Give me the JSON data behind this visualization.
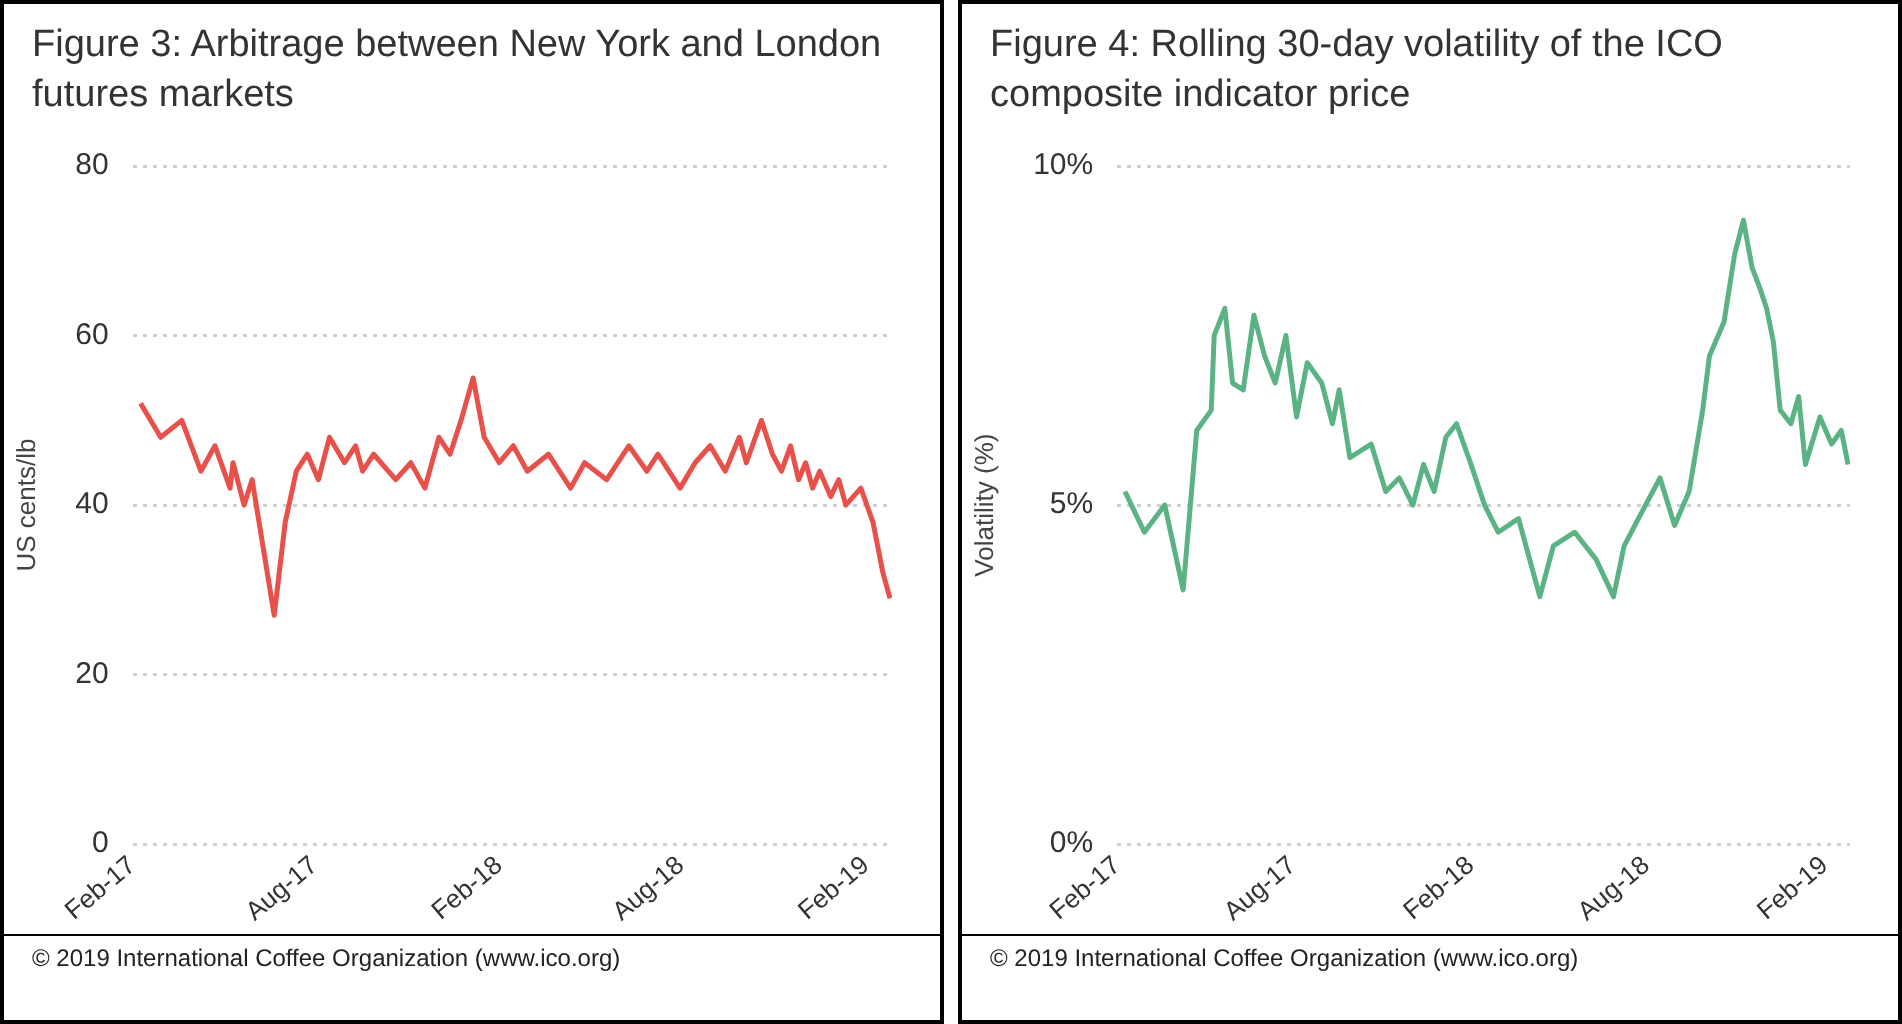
{
  "chart_data": [
    {
      "type": "line",
      "title": "Figure 3: Arbitrage between New York and London futures markets",
      "ylabel": "US cents/lb",
      "annotations": [
        "© 2019 International Coffee Organization (www.ico.org)"
      ],
      "x": [
        "2017-02-09",
        "2017-03-01",
        "2017-03-22",
        "2017-04-10",
        "2017-04-24",
        "2017-05-09",
        "2017-05-12",
        "2017-05-23",
        "2017-05-31",
        "2017-06-11",
        "2017-06-22",
        "2017-07-03",
        "2017-07-14",
        "2017-07-25",
        "2017-08-05",
        "2017-08-16",
        "2017-08-31",
        "2017-09-11",
        "2017-09-18",
        "2017-09-29",
        "2017-10-21",
        "2017-11-05",
        "2017-11-19",
        "2017-12-03",
        "2017-12-14",
        "2017-12-25",
        "2018-01-06",
        "2018-01-17",
        "2018-02-01",
        "2018-02-15",
        "2018-03-01",
        "2018-03-22",
        "2018-04-13",
        "2018-04-27",
        "2018-05-19",
        "2018-06-10",
        "2018-06-28",
        "2018-07-09",
        "2018-07-31",
        "2018-08-15",
        "2018-08-30",
        "2018-09-14",
        "2018-09-28",
        "2018-10-05",
        "2018-10-20",
        "2018-10-31",
        "2018-11-09",
        "2018-11-18",
        "2018-11-26",
        "2018-12-03",
        "2018-12-10",
        "2018-12-17",
        "2018-12-28",
        "2019-01-05",
        "2019-01-12",
        "2019-01-27",
        "2019-02-08",
        "2019-02-18",
        "2019-02-25"
      ],
      "series": [
        {
          "color": "#e8504a",
          "values": [
            52,
            48,
            50,
            44,
            47,
            42,
            45,
            40,
            43,
            35,
            27,
            38,
            44,
            46,
            43,
            48,
            45,
            47,
            44,
            46,
            43,
            45,
            42,
            48,
            46,
            50,
            55,
            48,
            45,
            47,
            44,
            46,
            42,
            45,
            43,
            47,
            44,
            46,
            42,
            45,
            47,
            44,
            48,
            45,
            50,
            46,
            44,
            47,
            43,
            45,
            42,
            44,
            41,
            43,
            40,
            42,
            38,
            32,
            29
          ]
        }
      ],
      "xlim": [
        "2017-02-01",
        "2019-02-27"
      ],
      "xticks": [
        {
          "value": "2017-02-01",
          "label": "Feb-17"
        },
        {
          "value": "2017-08-01",
          "label": "Aug-17"
        },
        {
          "value": "2018-02-01",
          "label": "Feb-18"
        },
        {
          "value": "2018-08-01",
          "label": "Aug-18"
        },
        {
          "value": "2019-02-01",
          "label": "Feb-19"
        }
      ],
      "ylim": [
        0,
        80
      ],
      "yticks": [
        0,
        20,
        40,
        60,
        80
      ],
      "grid": "y",
      "legend": false,
      "marker": "none",
      "line_style": "solid"
    },
    {
      "type": "line",
      "title": "Figure 4: Rolling 30-day volatility of the ICO composite indicator price",
      "ylabel": "Volatility (%)",
      "annotations": [
        "© 2019 International Coffee Organization (www.ico.org)"
      ],
      "x": [
        "2017-02-09",
        "2017-03-01",
        "2017-03-22",
        "2017-04-10",
        "2017-04-24",
        "2017-05-09",
        "2017-05-12",
        "2017-05-23",
        "2017-05-31",
        "2017-06-11",
        "2017-06-22",
        "2017-07-03",
        "2017-07-14",
        "2017-07-25",
        "2017-08-05",
        "2017-08-16",
        "2017-08-31",
        "2017-09-11",
        "2017-09-18",
        "2017-09-29",
        "2017-10-21",
        "2017-11-05",
        "2017-11-19",
        "2017-12-03",
        "2017-12-14",
        "2017-12-25",
        "2018-01-06",
        "2018-01-17",
        "2018-02-01",
        "2018-02-15",
        "2018-03-01",
        "2018-03-22",
        "2018-04-13",
        "2018-04-27",
        "2018-05-19",
        "2018-06-10",
        "2018-06-28",
        "2018-07-09",
        "2018-07-31",
        "2018-08-15",
        "2018-08-30",
        "2018-09-14",
        "2018-09-28",
        "2018-10-05",
        "2018-10-20",
        "2018-10-31",
        "2018-11-09",
        "2018-11-18",
        "2018-11-26",
        "2018-12-03",
        "2018-12-10",
        "2018-12-17",
        "2018-12-28",
        "2019-01-05",
        "2019-01-12",
        "2019-01-27",
        "2019-02-08",
        "2019-02-18",
        "2019-02-25"
      ],
      "series": [
        {
          "color": "#5bb384",
          "values": [
            5.2,
            4.6,
            5.0,
            3.75,
            6.1,
            6.4,
            7.5,
            7.9,
            6.8,
            6.7,
            7.8,
            7.2,
            6.8,
            7.5,
            6.3,
            7.1,
            6.8,
            6.2,
            6.7,
            5.7,
            5.9,
            5.2,
            5.4,
            5.0,
            5.6,
            5.2,
            6.0,
            6.2,
            5.6,
            5.0,
            4.6,
            4.8,
            3.65,
            4.4,
            4.6,
            4.2,
            3.65,
            4.4,
            5.0,
            5.4,
            4.7,
            5.2,
            6.4,
            7.2,
            7.7,
            8.7,
            9.2,
            8.5,
            8.2,
            7.9,
            7.4,
            6.4,
            6.2,
            6.6,
            5.6,
            6.3,
            5.9,
            6.1,
            5.6
          ]
        }
      ],
      "xlim": [
        "2017-02-01",
        "2019-02-27"
      ],
      "xticks": [
        {
          "value": "2017-02-01",
          "label": "Feb-17"
        },
        {
          "value": "2017-08-01",
          "label": "Aug-17"
        },
        {
          "value": "2018-02-01",
          "label": "Feb-18"
        },
        {
          "value": "2018-08-01",
          "label": "Aug-18"
        },
        {
          "value": "2019-02-01",
          "label": "Feb-19"
        }
      ],
      "ylim": [
        0,
        10
      ],
      "yticks": [
        {
          "value": 0,
          "label": "0%"
        },
        {
          "value": 5,
          "label": "5%"
        },
        {
          "value": 10,
          "label": "10%"
        }
      ],
      "grid": "y",
      "legend": false,
      "marker": "none",
      "line_style": "solid"
    }
  ]
}
